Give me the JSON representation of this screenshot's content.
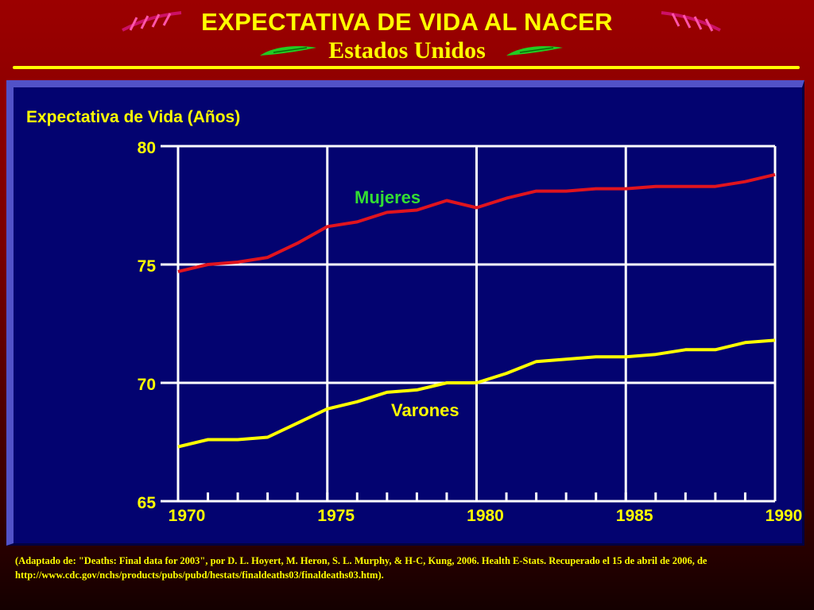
{
  "header": {
    "title": "EXPECTATIVA DE VIDA AL NACER",
    "subtitle": "Estados Unidos"
  },
  "colors": {
    "accent": "#ffff00",
    "women_line": "#e0141e",
    "men_line": "#ffff00",
    "women_label": "#33dd33",
    "grid": "#ffffff"
  },
  "footnote": "(Adaptado de: \"Deaths: Final data for 2003\", por  D. L. Hoyert,  M. Heron, S. L. Murphy, & H-C, Kung, 2006. Health E-Stats.  Recuperado el 15 de abril de 2006, de http://www.cdc.gov/nchs/products/pubs/pubd/hestats/finaldeaths03/finaldeaths03.htm).",
  "chart_data": {
    "type": "line",
    "ylabel": "Expectativa de Vida (Años)",
    "xlabel": "",
    "x": [
      1970,
      1971,
      1972,
      1973,
      1974,
      1975,
      1976,
      1977,
      1978,
      1979,
      1980,
      1981,
      1982,
      1983,
      1984,
      1985,
      1986,
      1987,
      1988,
      1989,
      1990
    ],
    "xlim": [
      1970,
      1990
    ],
    "ylim": [
      65,
      80
    ],
    "xticks": [
      "1970",
      "1975",
      "1980",
      "1985",
      "1990"
    ],
    "yticks": [
      "80",
      "75",
      "70",
      "65"
    ],
    "grid": true,
    "series": [
      {
        "name": "Mujeres",
        "values": [
          74.7,
          75.0,
          75.1,
          75.3,
          75.9,
          76.6,
          76.8,
          77.2,
          77.3,
          77.7,
          77.4,
          77.8,
          78.1,
          78.1,
          78.2,
          78.2,
          78.3,
          78.3,
          78.3,
          78.5,
          78.8
        ]
      },
      {
        "name": "Varones",
        "values": [
          67.3,
          67.6,
          67.6,
          67.7,
          68.3,
          68.9,
          69.2,
          69.6,
          69.7,
          70.0,
          70.0,
          70.4,
          70.9,
          71.0,
          71.1,
          71.1,
          71.2,
          71.4,
          71.4,
          71.7,
          71.8
        ]
      }
    ]
  }
}
